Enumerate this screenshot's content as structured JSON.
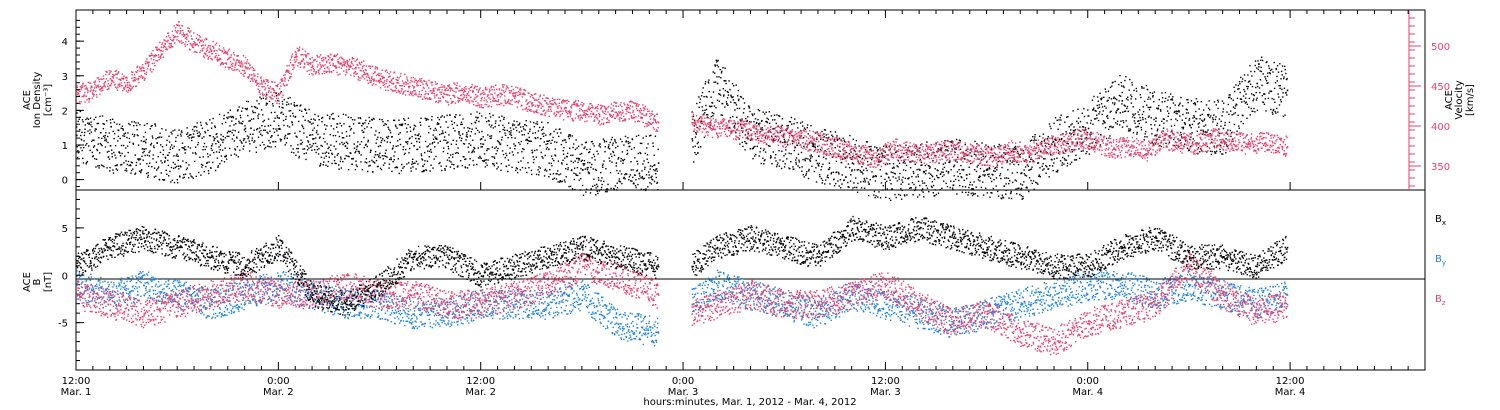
{
  "colors": {
    "black": "#000000",
    "pink": "#e8406a",
    "blue": "#1f83e0"
  },
  "x_axis": {
    "title": "hours:minutes, Mar.  1, 2012 - Mar.  4, 2012",
    "range_hours": [
      0,
      80
    ],
    "ticks": [
      {
        "h": 0,
        "time": "12:00",
        "date": "Mar. 1"
      },
      {
        "h": 12,
        "time": "0:00",
        "date": "Mar. 2"
      },
      {
        "h": 24,
        "time": "12:00",
        "date": "Mar. 2"
      },
      {
        "h": 36,
        "time": "0:00",
        "date": "Mar. 3"
      },
      {
        "h": 48,
        "time": "12:00",
        "date": "Mar. 3"
      },
      {
        "h": 60,
        "time": "0:00",
        "date": "Mar. 4"
      },
      {
        "h": 72,
        "time": "12:00",
        "date": "Mar. 4"
      }
    ]
  },
  "chart_data": [
    {
      "type": "scatter",
      "panel": "top",
      "left_axis": {
        "label_lines": [
          "ACE",
          "Ion Density",
          "[cm⁻³]"
        ],
        "ylim": [
          -0.3,
          4.9
        ],
        "ticks": [
          0,
          1,
          2,
          3,
          4
        ]
      },
      "right_axis": {
        "label_lines": [
          "ACE",
          "Velocity",
          "[km/s]"
        ],
        "ylim": [
          320,
          545
        ],
        "ticks": [
          350,
          400,
          450,
          500
        ],
        "color": "#e8406a"
      },
      "series": [
        {
          "color": "#000000",
          "axis": "left",
          "x_hours": [
            0,
            2,
            4,
            6,
            8,
            10,
            12,
            14,
            16,
            18,
            20,
            22,
            24,
            26,
            28,
            30,
            32,
            34.5,
            36.5,
            38,
            40,
            42,
            44,
            46,
            48,
            50,
            52,
            54,
            56,
            58,
            60,
            62,
            64,
            66,
            68,
            70,
            71.8
          ],
          "values": [
            1.3,
            1.0,
            0.9,
            0.7,
            1.0,
            1.5,
            1.8,
            1.2,
            1.1,
            1.0,
            1.0,
            1.1,
            1.2,
            1.0,
            0.9,
            0.3,
            0.5,
            0.5,
            1.2,
            2.8,
            1.3,
            1.1,
            0.7,
            0.5,
            0.2,
            0.3,
            0.4,
            0.3,
            0.2,
            1.0,
            1.5,
            2.3,
            1.8,
            1.6,
            1.5,
            2.8,
            2.6
          ]
        },
        {
          "color": "#e8406a",
          "axis": "right",
          "x_hours": [
            0,
            1,
            2,
            3,
            4,
            5,
            6,
            7,
            8,
            9,
            10,
            11,
            12,
            13,
            14,
            15,
            16,
            17,
            18,
            19,
            20,
            21,
            22,
            23,
            24,
            25,
            26,
            27,
            28,
            29,
            30,
            31,
            32,
            33,
            34.5,
            36.5,
            37.5,
            38.5,
            39.5,
            40.5,
            41.5,
            42.5,
            43.5,
            44.5,
            45.5,
            46.5,
            47.5,
            48.5,
            49.5,
            50.5,
            51.5,
            52.5,
            53.5,
            54.5,
            55.5,
            56.5,
            57.5,
            58.5,
            59.5,
            60.5,
            61.5,
            62.5,
            63.5,
            64.5,
            65.5,
            66.5,
            67.5,
            68.5,
            69.5,
            70.5,
            71.8
          ],
          "values": [
            440,
            445,
            460,
            455,
            470,
            495,
            520,
            505,
            495,
            485,
            475,
            450,
            440,
            490,
            475,
            480,
            475,
            470,
            460,
            455,
            450,
            445,
            440,
            445,
            435,
            440,
            438,
            430,
            425,
            420,
            420,
            415,
            418,
            420,
            405,
            405,
            400,
            398,
            395,
            392,
            388,
            385,
            382,
            378,
            370,
            365,
            360,
            372,
            368,
            365,
            370,
            368,
            365,
            362,
            370,
            365,
            375,
            378,
            385,
            380,
            372,
            375,
            370,
            385,
            380,
            378,
            385,
            382,
            378,
            380,
            375
          ]
        }
      ]
    },
    {
      "type": "scatter",
      "panel": "bottom",
      "left_axis": {
        "label_lines": [
          "ACE",
          "B",
          "[nT]"
        ],
        "ylim": [
          -10,
          9
        ],
        "ticks": [
          -5,
          0,
          5
        ]
      },
      "zero_line": true,
      "series": [
        {
          "name": "B",
          "subscript": "x",
          "color": "#000000",
          "x_hours": [
            0,
            2,
            4,
            6,
            8,
            10,
            12,
            14,
            16,
            18,
            20,
            22,
            24,
            26,
            28,
            30,
            32,
            34.5,
            36.5,
            38,
            40,
            42,
            44,
            46,
            48,
            50,
            52,
            54,
            56,
            58,
            60,
            62,
            64,
            66,
            68,
            70,
            71.8
          ],
          "values": [
            1,
            3,
            4,
            3,
            2,
            1,
            3,
            -2,
            -3,
            -1,
            2,
            2,
            0,
            1,
            2,
            3,
            2,
            1,
            1,
            3,
            4,
            3,
            2,
            5,
            4,
            5,
            4,
            3,
            2,
            1,
            1,
            3,
            4,
            2,
            2,
            1,
            3
          ]
        },
        {
          "name": "B",
          "subscript": "y",
          "color": "#1f83e0",
          "x_hours": [
            0,
            2,
            4,
            6,
            8,
            10,
            12,
            14,
            16,
            18,
            20,
            22,
            24,
            26,
            28,
            30,
            32,
            34.5,
            36.5,
            38,
            40,
            42,
            44,
            46,
            48,
            50,
            52,
            54,
            56,
            58,
            60,
            62,
            64,
            66,
            68,
            70,
            71.8
          ],
          "values": [
            -1,
            -2,
            -1,
            -2,
            -3,
            -2,
            -1,
            -2,
            -3,
            -3,
            -4,
            -4,
            -3,
            -3,
            -3,
            -2,
            -5,
            -6,
            -3,
            -1,
            -2,
            -3,
            -4,
            -2,
            -3,
            -4,
            -5,
            -4,
            -3,
            -2,
            -1,
            -1,
            -2,
            -1,
            -2,
            -3,
            -2
          ]
        },
        {
          "name": "B",
          "subscript": "z",
          "color": "#e8406a",
          "x_hours": [
            0,
            2,
            4,
            6,
            8,
            10,
            12,
            14,
            16,
            18,
            20,
            22,
            24,
            26,
            28,
            30,
            32,
            34.5,
            36.5,
            38,
            40,
            42,
            44,
            46,
            48,
            50,
            52,
            54,
            56,
            58,
            60,
            62,
            64,
            66,
            68,
            70,
            71.8
          ],
          "values": [
            -2,
            -3,
            -4,
            -3,
            -2,
            -1,
            -2,
            -2,
            -1,
            -2,
            -2,
            -3,
            -3,
            -2,
            -1,
            1,
            0,
            -2,
            -4,
            -3,
            -2,
            -3,
            -3,
            -2,
            -1,
            -3,
            -5,
            -4,
            -6,
            -7,
            -5,
            -4,
            -3,
            1,
            -2,
            -4,
            -3
          ]
        }
      ]
    }
  ]
}
